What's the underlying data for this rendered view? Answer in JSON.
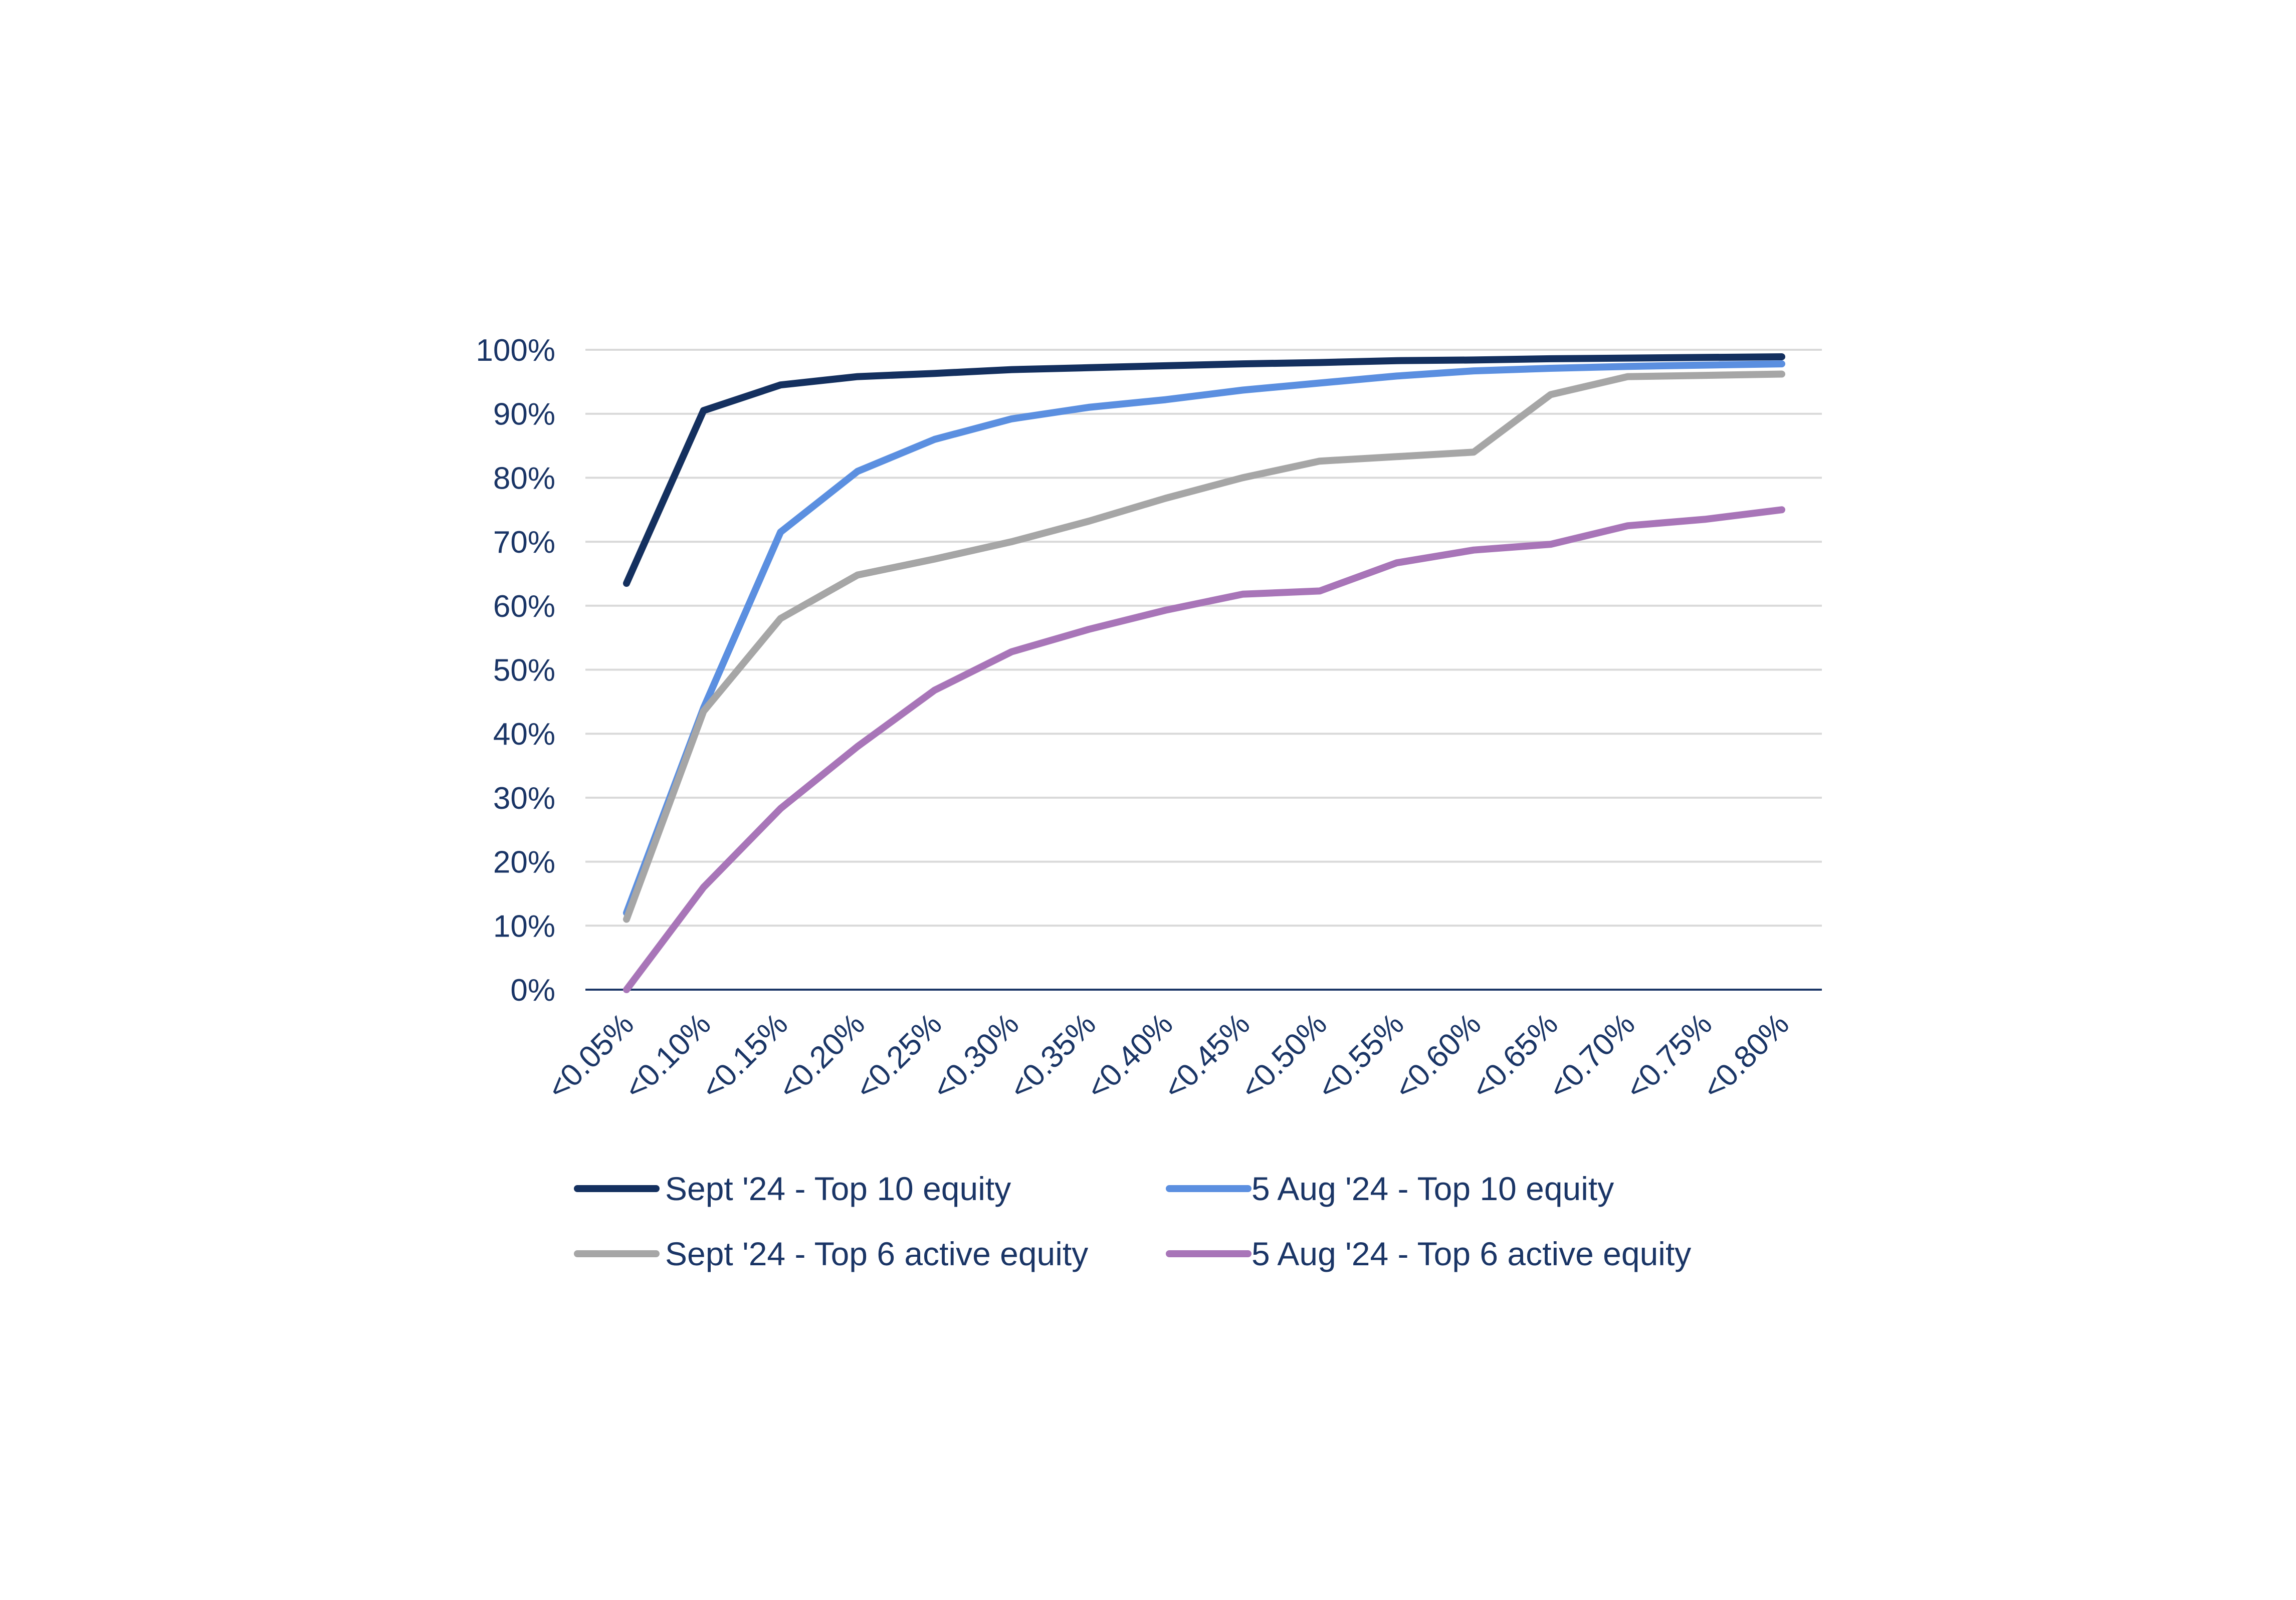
{
  "colors": {
    "text": "#1a3566",
    "grid": "#d9d9d9",
    "axis": "#1a3566"
  },
  "chart_data": {
    "type": "line",
    "title": "",
    "xlabel": "",
    "ylabel": "",
    "ylim": [
      0,
      100
    ],
    "y_ticks": [
      "0%",
      "10%",
      "20%",
      "30%",
      "40%",
      "50%",
      "60%",
      "70%",
      "80%",
      "90%",
      "100%"
    ],
    "grid": true,
    "legend_position": "bottom",
    "categories": [
      "<0.05%",
      "<0.10%",
      "<0.15%",
      "<0.20%",
      "<0.25%",
      "<0.30%",
      "<0.35%",
      "<0.40%",
      "<0.45%",
      "<0.50%",
      "<0.55%",
      "<0.60%",
      "<0.65%",
      "<0.70%",
      "<0.75%",
      "<0.80%"
    ],
    "series": [
      {
        "name": "Sept '24 - Top 10 equity",
        "color": "#14305f",
        "values": [
          63.5,
          90.5,
          94.5,
          95.8,
          96.3,
          96.9,
          97.2,
          97.5,
          97.8,
          98.0,
          98.3,
          98.4,
          98.6,
          98.7,
          98.8,
          98.9
        ]
      },
      {
        "name": "5 Aug '24 - Top 10 equity",
        "color": "#5b8fe0",
        "values": [
          12.0,
          44.0,
          71.5,
          81.0,
          86.0,
          89.2,
          91.0,
          92.2,
          93.7,
          94.8,
          95.9,
          96.7,
          97.1,
          97.4,
          97.6,
          97.8
        ]
      },
      {
        "name": "Sept '24 - Top 6 active equity",
        "color": "#a6a6a6",
        "values": [
          11.0,
          43.5,
          58.0,
          64.8,
          67.3,
          70.0,
          73.2,
          76.8,
          80.0,
          82.6,
          83.3,
          84.0,
          93.0,
          95.8,
          96.0,
          96.2
        ]
      },
      {
        "name": "5 Aug '24 - Top 6 active equity",
        "color": "#a875b8",
        "values": [
          0.0,
          16.0,
          28.3,
          38.0,
          46.8,
          52.8,
          56.3,
          59.3,
          61.8,
          62.3,
          66.7,
          68.7,
          69.6,
          72.5,
          73.5,
          75.0
        ]
      }
    ]
  }
}
